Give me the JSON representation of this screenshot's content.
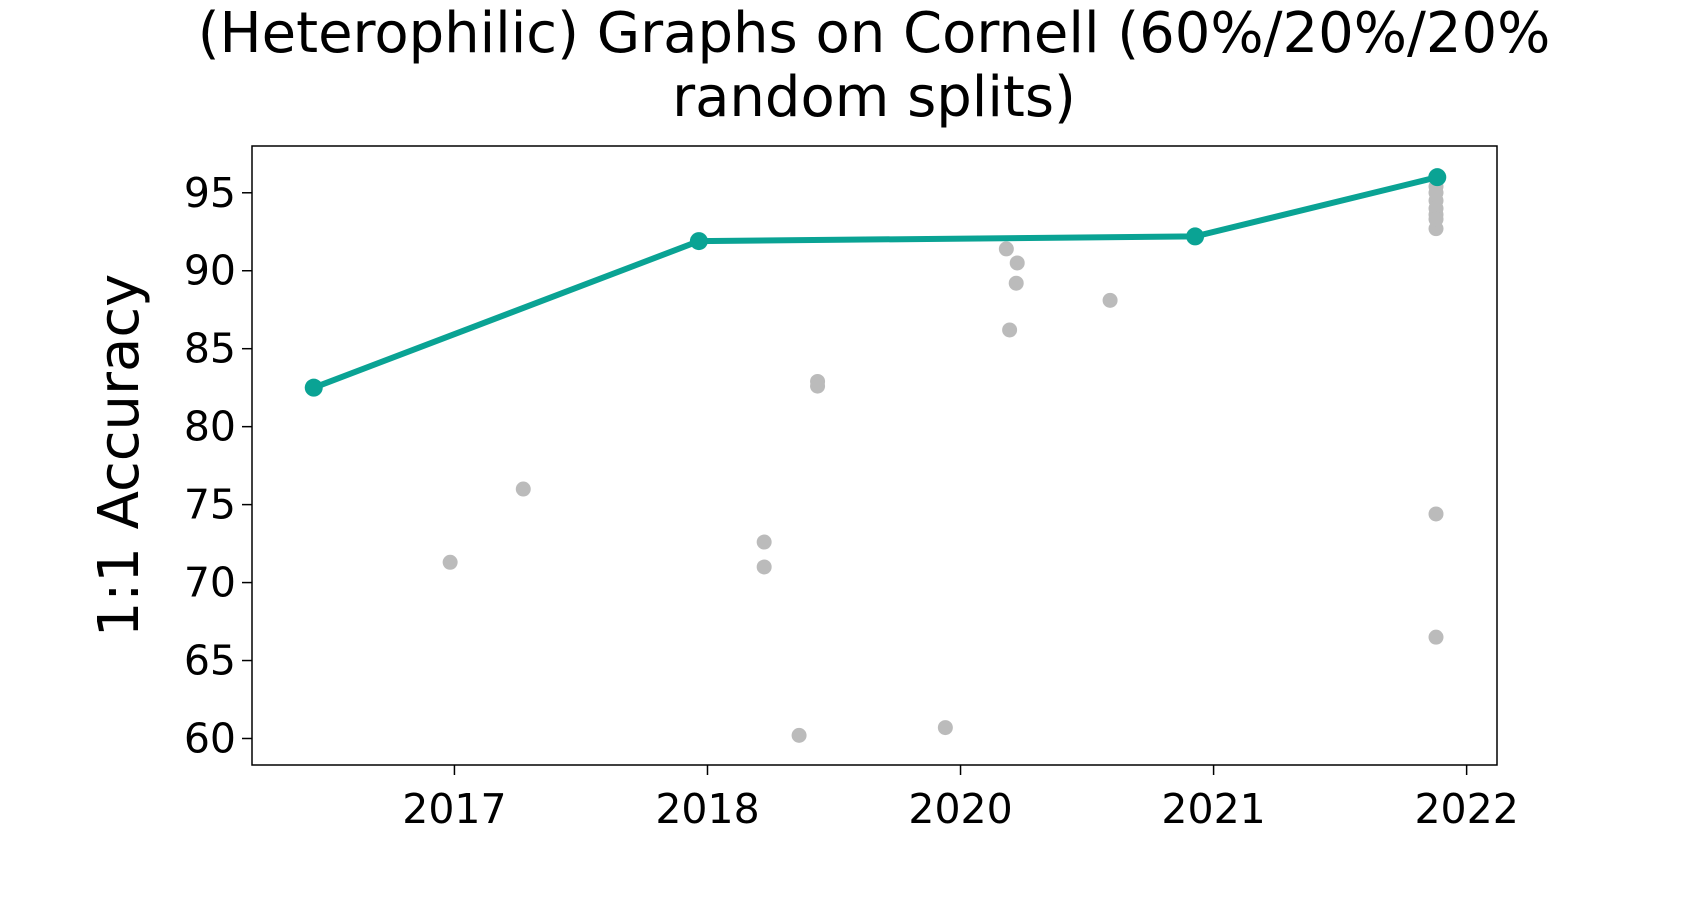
{
  "chart_data": {
    "type": "line",
    "title": [
      "(Heterophilic) Graphs on Cornell (60%/20%/20%",
      "random splits)"
    ],
    "ylabel": "1:1 Accuracy",
    "xlim": [
      -0.8,
      4.12
    ],
    "ylim": [
      58.3,
      98.0
    ],
    "xticks": [
      {
        "value": 0,
        "label": "2017"
      },
      {
        "value": 1,
        "label": "2018"
      },
      {
        "value": 2,
        "label": "2020"
      },
      {
        "value": 3,
        "label": "2021"
      },
      {
        "value": 4,
        "label": "2022"
      }
    ],
    "yticks": [
      60,
      65,
      70,
      75,
      80,
      85,
      90,
      95
    ],
    "series": [
      {
        "color": "#0aa394",
        "lines": true,
        "x": [
          -0.556,
          0.966,
          2.927,
          3.884
        ],
        "values": [
          82.5,
          91.9,
          92.2,
          96.0
        ]
      },
      {
        "color": "#bbbbbb",
        "lines": false,
        "x": [
          -0.017,
          0.272,
          1.224,
          1.224,
          1.362,
          1.435,
          1.435,
          1.94,
          2.181,
          2.224,
          2.22,
          2.194,
          2.591,
          3.879,
          3.879,
          3.879,
          3.879,
          3.879,
          3.879,
          3.879,
          3.879,
          3.879
        ],
        "values": [
          71.3,
          76.0,
          72.6,
          71.0,
          60.2,
          82.9,
          82.6,
          60.7,
          91.4,
          90.5,
          89.2,
          86.2,
          88.1,
          92.7,
          95.4,
          95.0,
          94.5,
          94.0,
          93.6,
          93.3,
          74.4,
          66.5
        ]
      }
    ]
  }
}
